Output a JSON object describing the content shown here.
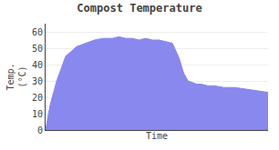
{
  "chart_data": {
    "type": "area",
    "title": "Compost Temperature",
    "xlabel": "Time",
    "ylabel": "Temp.\n(°C)",
    "x": [
      0,
      2,
      5,
      9,
      14,
      18,
      22,
      26,
      30,
      33,
      36,
      39,
      42,
      45,
      48,
      51,
      54,
      57,
      60,
      62,
      64,
      66,
      68,
      70,
      73,
      76,
      80,
      85,
      90,
      95,
      100
    ],
    "values": [
      0,
      15,
      30,
      45,
      51,
      53,
      55,
      56,
      56,
      57,
      56,
      56,
      55,
      56,
      55,
      55,
      54,
      53,
      44,
      35,
      30,
      29,
      28,
      28,
      27,
      27,
      26,
      26,
      25,
      24,
      23
    ],
    "color": "#8888ee",
    "xlim": [
      0,
      100
    ],
    "ylim": [
      0,
      65
    ],
    "yticks": [
      0,
      10,
      20,
      30,
      40,
      50,
      60
    ],
    "grid": true,
    "tick_labels": "y"
  }
}
